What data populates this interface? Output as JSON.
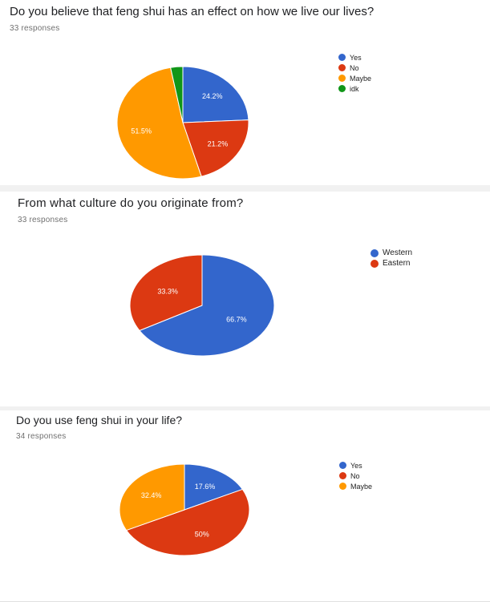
{
  "chart_data": [
    {
      "type": "pie",
      "title": "Do you believe that feng shui has an effect on how we live our lives?",
      "subtitle": "33 responses",
      "categories": [
        "Yes",
        "No",
        "Maybe",
        "idk"
      ],
      "values": [
        24.2,
        21.2,
        51.5,
        3.0
      ],
      "labels": [
        "24.2%",
        "21.2%",
        "51.5%",
        ""
      ],
      "colors": [
        "#3366cc",
        "#dc3912",
        "#ff9900",
        "#109618"
      ],
      "legend_position": "right"
    },
    {
      "type": "pie",
      "title": "From what culture do you originate from?",
      "subtitle": "33 responses",
      "categories": [
        "Western",
        "Eastern"
      ],
      "values": [
        66.7,
        33.3
      ],
      "labels": [
        "66.7%",
        "33.3%"
      ],
      "colors": [
        "#3366cc",
        "#dc3912"
      ],
      "legend_position": "right"
    },
    {
      "type": "pie",
      "title": "Do you use feng shui in your life?",
      "subtitle": "34 responses",
      "categories": [
        "Yes",
        "No",
        "Maybe"
      ],
      "values": [
        17.6,
        50.0,
        32.4
      ],
      "labels": [
        "17.6%",
        "50%",
        "32.4%"
      ],
      "colors": [
        "#3366cc",
        "#dc3912",
        "#ff9900"
      ],
      "legend_position": "right"
    }
  ]
}
